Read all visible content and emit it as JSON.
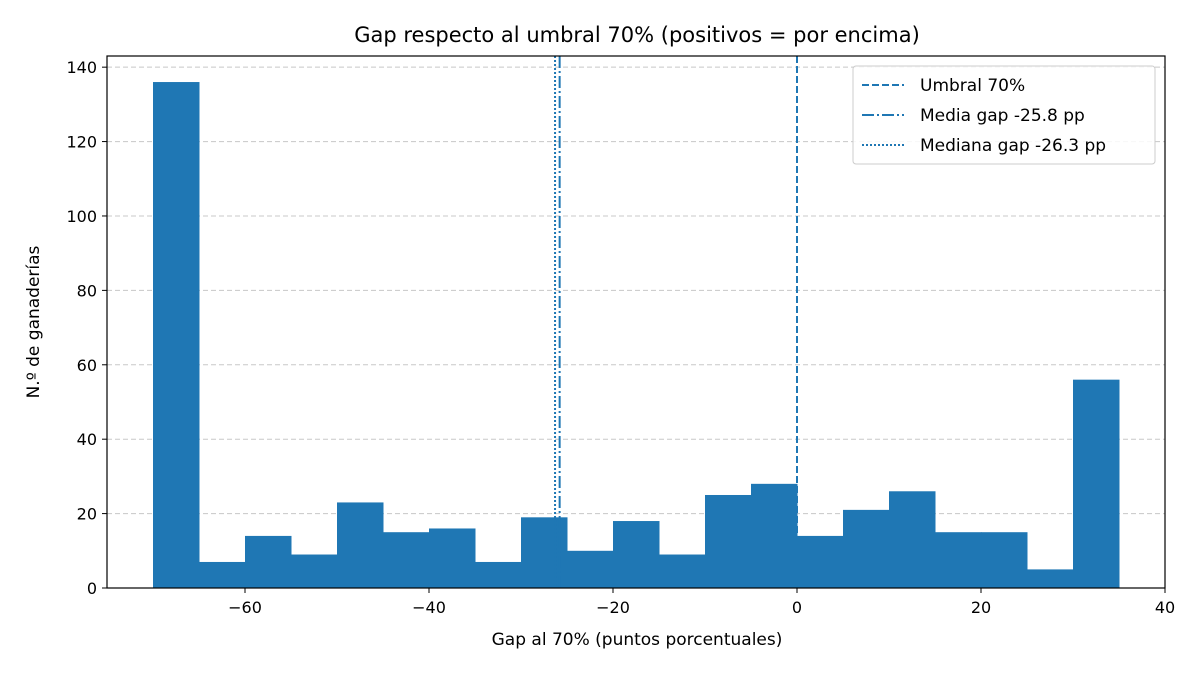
{
  "chart_data": {
    "type": "bar",
    "title": "Gap respecto al umbral 70% (positivos = por encima)",
    "xlabel": "Gap al 70% (puntos porcentuales)",
    "ylabel": "N.º de ganaderías",
    "xlim": [
      -75,
      40
    ],
    "ylim": [
      0,
      143
    ],
    "xticks": [
      -60,
      -40,
      -20,
      0,
      20,
      40
    ],
    "xtick_labels": [
      "−60",
      "−40",
      "−20",
      "0",
      "20",
      "40"
    ],
    "yticks": [
      0,
      20,
      40,
      60,
      80,
      100,
      120,
      140
    ],
    "grid": "y-dashed",
    "bar_color": "#1f77b4",
    "bins": [
      {
        "x0": -70,
        "x1": -65,
        "count": 136
      },
      {
        "x0": -65,
        "x1": -60,
        "count": 7
      },
      {
        "x0": -60,
        "x1": -55,
        "count": 14
      },
      {
        "x0": -55,
        "x1": -50,
        "count": 9
      },
      {
        "x0": -50,
        "x1": -45,
        "count": 23
      },
      {
        "x0": -45,
        "x1": -40,
        "count": 15
      },
      {
        "x0": -40,
        "x1": -35,
        "count": 16
      },
      {
        "x0": -35,
        "x1": -30,
        "count": 7
      },
      {
        "x0": -30,
        "x1": -25,
        "count": 19
      },
      {
        "x0": -25,
        "x1": -20,
        "count": 10
      },
      {
        "x0": -20,
        "x1": -15,
        "count": 18
      },
      {
        "x0": -15,
        "x1": -10,
        "count": 9
      },
      {
        "x0": -10,
        "x1": -5,
        "count": 25
      },
      {
        "x0": -5,
        "x1": 0,
        "count": 28
      },
      {
        "x0": 0,
        "x1": 5,
        "count": 14
      },
      {
        "x0": 5,
        "x1": 10,
        "count": 21
      },
      {
        "x0": 10,
        "x1": 15,
        "count": 26
      },
      {
        "x0": 15,
        "x1": 20,
        "count": 15
      },
      {
        "x0": 20,
        "x1": 25,
        "count": 15
      },
      {
        "x0": 25,
        "x1": 30,
        "count": 5
      },
      {
        "x0": 30,
        "x1": 35,
        "count": 56
      }
    ],
    "vlines": [
      {
        "name": "Umbral 70%",
        "x": 0,
        "style": "dashed",
        "color": "#1f77b4"
      },
      {
        "name": "Media gap -25.8 pp",
        "x": -25.8,
        "style": "dashdot",
        "color": "#1f77b4"
      },
      {
        "name": "Mediana gap -26.3 pp",
        "x": -26.3,
        "style": "dotted",
        "color": "#1f77b4"
      }
    ],
    "legend_position": "top-right"
  }
}
